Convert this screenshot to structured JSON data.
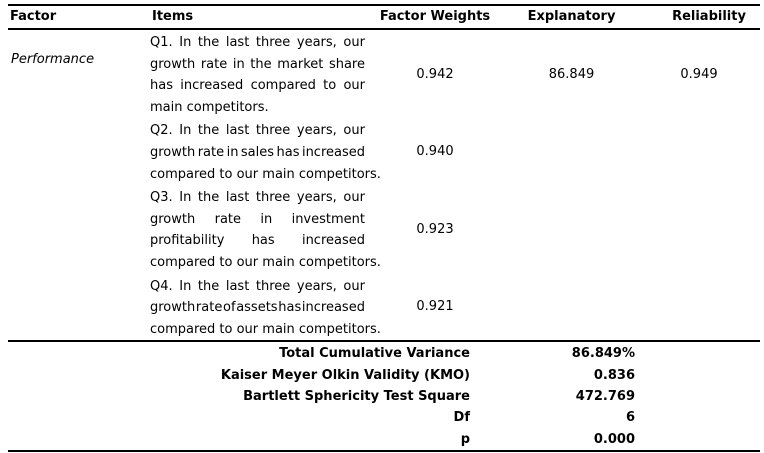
{
  "table": {
    "columns": [
      "Factor",
      "Items",
      "Factor Weights",
      "Explanatory",
      "Reliability"
    ],
    "rows": [
      {
        "factor": "Performance",
        "item_lines": [
          "Q1. In the last three years, our",
          "growth rate in the market share",
          "has increased compared to our",
          "main competitors."
        ],
        "factor_weight": "0.942",
        "explanatory": "86.849",
        "reliability": "0.949"
      },
      {
        "factor": "",
        "item_lines": [
          "Q2. In the last three years, our",
          "growth rate in sales has increased",
          "compared to our main competitors."
        ],
        "factor_weight": "0.940",
        "explanatory": "",
        "reliability": ""
      },
      {
        "factor": "",
        "item_lines": [
          "Q3. In the last three years, our",
          "growth rate in investment",
          "profitability has increased",
          "compared to our main competitors."
        ],
        "factor_weight": "0.923",
        "explanatory": "",
        "reliability": ""
      },
      {
        "factor": "",
        "item_lines": [
          "Q4. In the last three years, our",
          "growth rate of assets has increased",
          "compared to our main competitors."
        ],
        "factor_weight": "0.921",
        "explanatory": "",
        "reliability": ""
      }
    ],
    "summary": [
      {
        "label": "Total Cumulative Variance",
        "value": "86.849%"
      },
      {
        "label": "Kaiser Meyer Olkin Validity (KMO)",
        "value": "0.836"
      },
      {
        "label": "Bartlett Sphericity Test Square",
        "value": "472.769"
      },
      {
        "label": "Df",
        "value": "6"
      },
      {
        "label": "p",
        "value": "0.000"
      }
    ]
  }
}
